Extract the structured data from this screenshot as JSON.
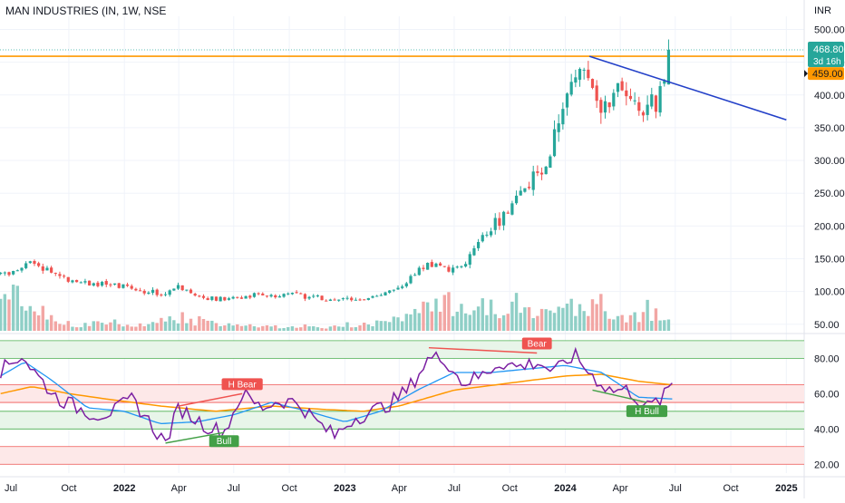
{
  "header": {
    "symbol_title": "MAN INDUSTRIES (IN, 1W, NSE",
    "currency": "INR"
  },
  "colors": {
    "up": "#26a69a",
    "down": "#ef5350",
    "vol_up": "#8fcfc6",
    "vol_down": "#f2a6a4",
    "resistance": "#ff9800",
    "trendline": "#2340c8",
    "rsi": "#7b1fa2",
    "rsi_ma1": "#2196f3",
    "rsi_ma2": "#ff9800"
  },
  "chart_data": [
    {
      "type": "candlestick",
      "title": "MAN INDUSTRIES (IN, 1W, NSE",
      "ylim": [
        40,
        520
      ],
      "y_ticks": [
        50,
        100,
        150,
        200,
        250,
        300,
        350,
        400,
        450,
        500
      ],
      "y_tick_labels": [
        "50.00",
        "100.00",
        "150.00",
        "200.00",
        "250.00",
        "300.00",
        "350.00",
        "400.00",
        "450.00",
        "500.00"
      ],
      "x_ticks": [
        "Oct",
        "2022",
        "Apr",
        "Jul",
        "Oct",
        "2023",
        "Apr",
        "Jul",
        "Oct",
        "2024",
        "Apr",
        "Jul",
        "Oct",
        "2025"
      ],
      "last_price": {
        "value": 468.8,
        "label": "468.80",
        "countdown": "3d 16h"
      },
      "resistance_level": {
        "value": 459.0,
        "label": "459.00"
      },
      "trendline": {
        "start": {
          "date": "2024-02",
          "value": 459
        },
        "end": {
          "date": "2025-01",
          "value": 362
        }
      },
      "series": [
        {
          "name": "close",
          "anchors": [
            [
              "2021-07-01",
              128
            ],
            [
              "2021-08-01",
              145
            ],
            [
              "2021-09-01",
              130
            ],
            [
              "2021-10-01",
              118
            ],
            [
              "2021-11-01",
              113
            ],
            [
              "2021-12-01",
              110
            ],
            [
              "2022-01-01",
              108
            ],
            [
              "2022-02-01",
              101
            ],
            [
              "2022-03-01",
              96
            ],
            [
              "2022-04-01",
              106
            ],
            [
              "2022-05-01",
              96
            ],
            [
              "2022-06-01",
              88
            ],
            [
              "2022-07-01",
              90
            ],
            [
              "2022-08-01",
              95
            ],
            [
              "2022-09-01",
              92
            ],
            [
              "2022-10-01",
              97
            ],
            [
              "2022-11-01",
              93
            ],
            [
              "2022-12-01",
              87
            ],
            [
              "2023-01-01",
              88
            ],
            [
              "2023-02-01",
              90
            ],
            [
              "2023-03-01",
              95
            ],
            [
              "2023-04-01",
              102
            ],
            [
              "2023-05-01",
              132
            ],
            [
              "2023-06-01",
              142
            ],
            [
              "2023-07-01",
              130
            ],
            [
              "2023-08-01",
              162
            ],
            [
              "2023-09-01",
              200
            ],
            [
              "2023-10-01",
              225
            ],
            [
              "2023-11-01",
              260
            ],
            [
              "2023-12-01",
              300
            ],
            [
              "2024-01-01",
              390
            ],
            [
              "2024-02-01",
              455
            ],
            [
              "2024-03-01",
              380
            ],
            [
              "2024-04-01",
              405
            ],
            [
              "2024-05-01",
              370
            ],
            [
              "2024-06-01",
              390
            ],
            [
              "2024-06-26",
              468.8
            ]
          ]
        }
      ],
      "volume": {
        "note": "volume bars at bottom of price pane, colored by candle direction",
        "anchors": [
          [
            "2021-07-01",
            35
          ],
          [
            "2021-08-01",
            28
          ],
          [
            "2021-09-01",
            12
          ],
          [
            "2021-10-01",
            8
          ],
          [
            "2022-01-01",
            7
          ],
          [
            "2022-04-01",
            14
          ],
          [
            "2022-07-01",
            6
          ],
          [
            "2022-10-01",
            5
          ],
          [
            "2023-01-01",
            4
          ],
          [
            "2023-04-01",
            12
          ],
          [
            "2023-06-01",
            28
          ],
          [
            "2023-08-01",
            30
          ],
          [
            "2023-10-01",
            22
          ],
          [
            "2023-12-01",
            18
          ],
          [
            "2024-02-01",
            28
          ],
          [
            "2024-04-01",
            18
          ],
          [
            "2024-06-26",
            18
          ]
        ]
      }
    },
    {
      "type": "line",
      "title": "RSI",
      "ylim": [
        15,
        92
      ],
      "y_ticks": [
        20,
        40,
        60,
        80
      ],
      "y_tick_labels": [
        "20.00",
        "40.00",
        "60.00",
        "80.00"
      ],
      "bands": [
        {
          "from": 80,
          "to": 90,
          "color": "#e8f5e9"
        },
        {
          "from": 55,
          "to": 65,
          "color": "#fde8e8"
        },
        {
          "from": 40,
          "to": 50,
          "color": "#e8f5e9"
        },
        {
          "from": 20,
          "to": 30,
          "color": "#fde8e8"
        }
      ],
      "band_lines": {
        "green": [
          90,
          80,
          50,
          40
        ],
        "red": [
          65,
          55,
          30,
          20
        ]
      },
      "series": [
        {
          "name": "rsi",
          "anchors": [
            [
              "2021-06-10",
              73
            ],
            [
              "2021-07-15",
              82
            ],
            [
              "2021-08-10",
              70
            ],
            [
              "2021-09-10",
              58
            ],
            [
              "2021-10-15",
              52
            ],
            [
              "2021-11-15",
              48
            ],
            [
              "2021-12-15",
              50
            ],
            [
              "2022-01-15",
              57
            ],
            [
              "2022-02-15",
              42
            ],
            [
              "2022-03-10",
              32
            ],
            [
              "2022-04-01",
              52
            ],
            [
              "2022-05-15",
              42
            ],
            [
              "2022-06-15",
              38
            ],
            [
              "2022-07-15",
              60
            ],
            [
              "2022-08-15",
              52
            ],
            [
              "2022-09-15",
              56
            ],
            [
              "2022-10-15",
              55
            ],
            [
              "2022-11-15",
              44
            ],
            [
              "2022-12-15",
              36
            ],
            [
              "2023-01-15",
              46
            ],
            [
              "2023-02-15",
              50
            ],
            [
              "2023-03-15",
              54
            ],
            [
              "2023-04-15",
              62
            ],
            [
              "2023-05-20",
              80
            ],
            [
              "2023-06-15",
              80
            ],
            [
              "2023-07-15",
              66
            ],
            [
              "2023-08-15",
              70
            ],
            [
              "2023-09-15",
              78
            ],
            [
              "2023-10-15",
              75
            ],
            [
              "2023-11-15",
              78
            ],
            [
              "2023-12-15",
              72
            ],
            [
              "2024-01-15",
              82
            ],
            [
              "2024-02-15",
              70
            ],
            [
              "2024-03-15",
              62
            ],
            [
              "2024-04-15",
              62
            ],
            [
              "2024-05-15",
              52
            ],
            [
              "2024-06-10",
              57
            ],
            [
              "2024-06-26",
              66
            ]
          ]
        },
        {
          "name": "rsi_ma_short",
          "anchors": [
            [
              "2021-06-10",
              70
            ],
            [
              "2021-07-20",
              78
            ],
            [
              "2021-09-01",
              68
            ],
            [
              "2021-11-01",
              52
            ],
            [
              "2022-01-01",
              50
            ],
            [
              "2022-03-01",
              43
            ],
            [
              "2022-05-01",
              44
            ],
            [
              "2022-07-01",
              48
            ],
            [
              "2022-09-01",
              55
            ],
            [
              "2022-11-01",
              50
            ],
            [
              "2023-01-01",
              44
            ],
            [
              "2023-03-01",
              50
            ],
            [
              "2023-05-01",
              62
            ],
            [
              "2023-07-01",
              72
            ],
            [
              "2023-09-01",
              72
            ],
            [
              "2023-11-01",
              74
            ],
            [
              "2024-01-01",
              76
            ],
            [
              "2024-03-01",
              72
            ],
            [
              "2024-05-01",
              58
            ],
            [
              "2024-06-26",
              57
            ]
          ]
        },
        {
          "name": "rsi_ma_long",
          "anchors": [
            [
              "2021-06-10",
              60
            ],
            [
              "2021-08-01",
              64
            ],
            [
              "2021-10-01",
              60
            ],
            [
              "2021-12-01",
              57
            ],
            [
              "2022-03-01",
              53
            ],
            [
              "2022-06-01",
              50
            ],
            [
              "2022-09-01",
              53
            ],
            [
              "2022-12-01",
              51
            ],
            [
              "2023-02-01",
              50
            ],
            [
              "2023-04-01",
              53
            ],
            [
              "2023-07-01",
              62
            ],
            [
              "2023-10-01",
              66
            ],
            [
              "2024-01-01",
              70
            ],
            [
              "2024-03-01",
              71
            ],
            [
              "2024-05-01",
              67
            ],
            [
              "2024-06-26",
              65
            ]
          ]
        }
      ],
      "divergences": [
        {
          "label": "H Bear",
          "kind": "bear",
          "from": [
            "2022-04-01",
            53
          ],
          "to": [
            "2022-07-15",
            60
          ]
        },
        {
          "label": "Bull",
          "kind": "bull",
          "from": [
            "2022-03-10",
            32
          ],
          "to": [
            "2022-06-15",
            38
          ]
        },
        {
          "label": "Bear",
          "kind": "bear",
          "from": [
            "2023-05-20",
            86
          ],
          "to": [
            "2023-11-15",
            83
          ]
        },
        {
          "label": "H Bull",
          "kind": "bull",
          "from": [
            "2024-02-15",
            62
          ],
          "to": [
            "2024-05-15",
            55
          ]
        }
      ]
    }
  ]
}
